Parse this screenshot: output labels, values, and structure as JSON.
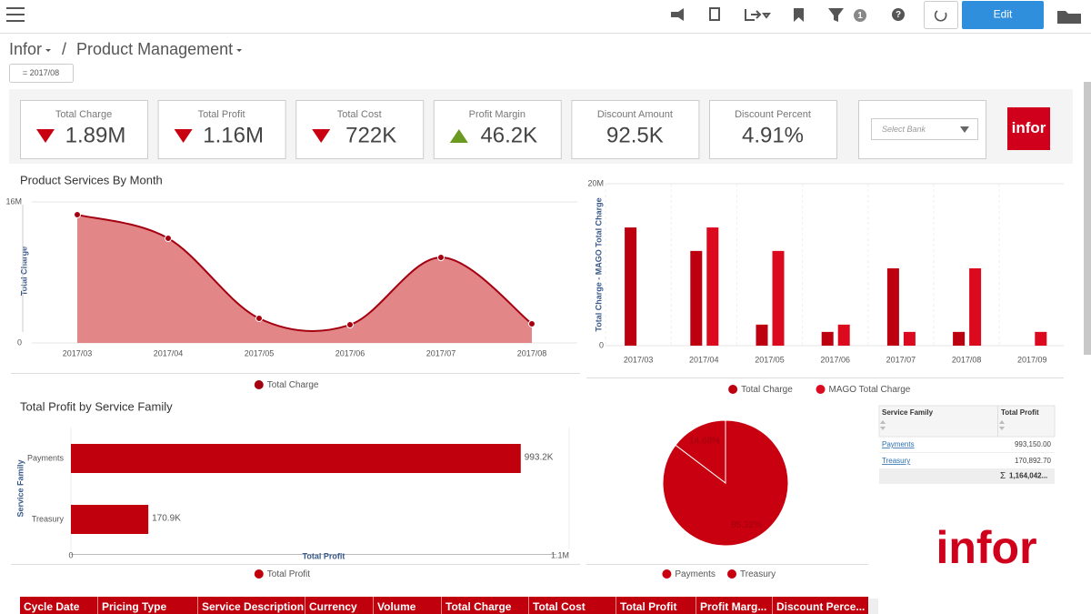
{
  "toolbar": {
    "filter_badge": "1",
    "edit_button": "Edit"
  },
  "breadcrumb": {
    "items": [
      "Infor",
      "Product Management"
    ],
    "separator": "/"
  },
  "filter_chip": "= 2017/08",
  "kpis": [
    {
      "label": "Total Charge",
      "value": "1.89M",
      "trend": "down"
    },
    {
      "label": "Total Profit",
      "value": "1.16M",
      "trend": "down"
    },
    {
      "label": "Total Cost",
      "value": "722K",
      "trend": "down"
    },
    {
      "label": "Profit Margin",
      "value": "46.2K",
      "trend": "up"
    },
    {
      "label": "Discount Amount",
      "value": "92.5K"
    },
    {
      "label": "Discount Percent",
      "value": "4.91%"
    }
  ],
  "bank_select": {
    "placeholder": "Select Bank"
  },
  "logo": "infor",
  "chart_data": [
    {
      "type": "area",
      "title": "Product Services By Month",
      "y_label": "Total Charge",
      "categories": [
        "2017/03",
        "2017/04",
        "2017/05",
        "2017/06",
        "2017/07",
        "2017/08"
      ],
      "series": [
        {
          "name": "Total Charge",
          "color": "#a50010",
          "values": [
            14550000,
            11870000,
            2790000,
            2060000,
            9700000,
            2170000
          ]
        }
      ],
      "fill": "#e07f82",
      "ylim": [
        0,
        16000000
      ],
      "yticks": [
        0,
        {
          "value": 16000000,
          "label": "16M"
        }
      ]
    },
    {
      "type": "bar",
      "y_label": "Total Charge  -  MAGO Total Charge",
      "categories": [
        "2017/03",
        "2017/04",
        "2017/05",
        "2017/06",
        "2017/07",
        "2017/08",
        "2017/09"
      ],
      "series": [
        {
          "name": "Total Charge",
          "color": "#bd0010",
          "values": [
            14600000,
            11700000,
            2600000,
            1700000,
            9550000,
            1700000,
            null
          ]
        },
        {
          "name": "MAGO Total Charge",
          "color": "#dc0a1e",
          "values": [
            null,
            14600000,
            11700000,
            2600000,
            1700000,
            9550000,
            1700000
          ]
        }
      ],
      "ylim": [
        0,
        20000000
      ],
      "yticks": [
        0,
        {
          "value": 20000000,
          "label": "20M"
        }
      ]
    },
    {
      "type": "hbar",
      "title": "Total Profit by Service Family",
      "x_label": "Total Profit",
      "y_label": "Service Family",
      "categories": [
        "Payments",
        "Treasury"
      ],
      "series": [
        {
          "name": "Total Profit",
          "color": "#c0000c",
          "values": [
            993150,
            170892.7
          ],
          "value_labels": [
            "993.2K",
            "170.9K"
          ]
        }
      ],
      "xlim": [
        0,
        1100000
      ],
      "xticks": [
        0,
        {
          "value": 1100000,
          "label": "1.1M"
        }
      ]
    },
    {
      "type": "pie",
      "categories": [
        "Payments",
        "Treasury"
      ],
      "values": [
        85.32,
        14.68
      ],
      "value_labels": [
        "85.32%",
        "14.68%"
      ],
      "colors": [
        "#c8000f",
        "#c8000f"
      ]
    }
  ],
  "summary_table": {
    "headers": [
      "Service Family",
      "Total Profit"
    ],
    "rows": [
      [
        "Payments",
        "993,150.00"
      ],
      [
        "Treasury",
        "170,892.70"
      ]
    ],
    "total_symbol": "Σ",
    "total": "1,164,042..."
  },
  "data_table": {
    "headers": [
      "Cycle Date",
      "Pricing Type",
      "Service Description",
      "Currency",
      "Volume",
      "Total Charge",
      "Total Cost",
      "Total Profit",
      "Profit Marg...",
      "Discount Perce..."
    ]
  }
}
